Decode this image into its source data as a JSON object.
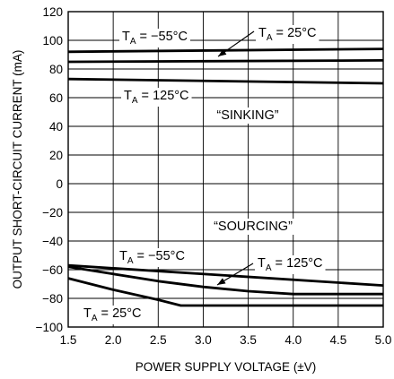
{
  "chart_data": {
    "type": "line",
    "xlabel": "POWER SUPPLY VOLTAGE (±V)",
    "ylabel": "OUTPUT SHORT-CIRCUIT CURRENT (mA)",
    "xlim": [
      1.5,
      5.0
    ],
    "ylim": [
      -100,
      120
    ],
    "x_ticks": [
      "1.5",
      "2.0",
      "2.5",
      "3.0",
      "3.5",
      "4.0",
      "4.5",
      "5.0"
    ],
    "y_ticks": [
      "120",
      "100",
      "80",
      "60",
      "40",
      "20",
      "0",
      "−20",
      "−40",
      "−60",
      "−80",
      "−100"
    ],
    "grid": true,
    "series": [
      {
        "region": "sinking",
        "temperature": "−55°C",
        "x": [
          1.5,
          5.0
        ],
        "y": [
          92,
          94
        ]
      },
      {
        "region": "sinking",
        "temperature": "25°C",
        "x": [
          1.5,
          5.0
        ],
        "y": [
          85,
          86
        ]
      },
      {
        "region": "sinking",
        "temperature": "125°C",
        "x": [
          1.5,
          5.0
        ],
        "y": [
          73,
          70
        ]
      },
      {
        "region": "sourcing",
        "temperature": "−55°C",
        "x": [
          1.5,
          5.0
        ],
        "y": [
          -57,
          -71
        ]
      },
      {
        "region": "sourcing",
        "temperature": "125°C",
        "x": [
          1.5,
          2.0,
          2.5,
          3.0,
          3.5,
          4.0,
          5.0
        ],
        "y": [
          -58,
          -63,
          -68,
          -72,
          -75,
          -77,
          -77
        ]
      },
      {
        "region": "sourcing",
        "temperature": "25°C",
        "x": [
          1.5,
          2.0,
          2.5,
          2.75,
          5.0
        ],
        "y": [
          -66,
          -74,
          -81,
          -85,
          -85
        ]
      }
    ],
    "annotations": {
      "sinking_region": "“SINKING”",
      "sourcing_region": "“SOURCING”",
      "temp_prefix": "T",
      "temp_subscript": "A",
      "temp_values": {
        "sink_m55": "−55°C",
        "sink_25": "25°C",
        "sink_125": "125°C",
        "src_m55": "−55°C",
        "src_125": "125°C",
        "src_25": "25°C"
      }
    }
  }
}
